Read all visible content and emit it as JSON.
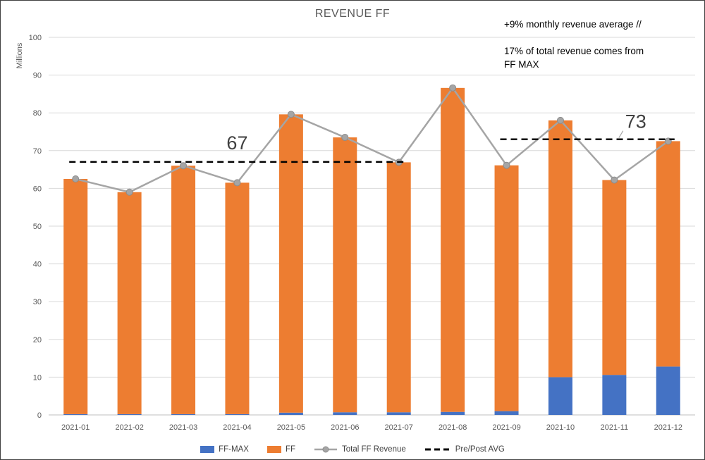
{
  "chart_data": {
    "type": "bar",
    "title": "REVENUE FF",
    "xlabel": "",
    "ylabel": "Millions",
    "ylim": [
      0,
      100
    ],
    "ytick_step": 10,
    "grid": true,
    "legend_position": "bottom",
    "categories": [
      "2021-01",
      "2021-02",
      "2021-03",
      "2021-04",
      "2021-05",
      "2021-06",
      "2021-07",
      "2021-08",
      "2021-09",
      "2021-10",
      "2021-11",
      "2021-12"
    ],
    "series": [
      {
        "name": "FF-MAX",
        "type": "bar",
        "stack": true,
        "color": "#4472C4",
        "values": [
          0.2,
          0.2,
          0.2,
          0.2,
          0.6,
          0.7,
          0.7,
          0.8,
          1.0,
          10.0,
          10.6,
          12.8
        ]
      },
      {
        "name": "FF",
        "type": "bar",
        "stack": true,
        "color": "#ED7D31",
        "values": [
          62.3,
          58.8,
          65.8,
          61.3,
          79.0,
          72.8,
          66.2,
          85.8,
          65.1,
          68.0,
          51.6,
          59.7
        ]
      },
      {
        "name": "Total FF Revenue",
        "type": "line",
        "color": "#A5A5A5",
        "marker": "circle",
        "values": [
          62.5,
          59.0,
          66.0,
          61.5,
          79.6,
          73.5,
          66.9,
          86.6,
          66.1,
          78.0,
          62.2,
          72.5
        ]
      }
    ],
    "reference_lines": [
      {
        "name": "Pre/Post AVG",
        "value": 67,
        "from": "2021-01",
        "to": "2021-07",
        "label": "67",
        "color": "#000000",
        "style": "dashed"
      },
      {
        "name": "Pre/Post AVG",
        "value": 73,
        "from": "2021-09",
        "to": "2021-12",
        "label": "73",
        "color": "#000000",
        "style": "dashed"
      }
    ],
    "annotations": [
      "+9% monthly revenue average //",
      "17% of total revenue comes from FF MAX"
    ],
    "legend": [
      "FF-MAX",
      "FF",
      "Total FF Revenue",
      "Pre/Post AVG"
    ]
  }
}
